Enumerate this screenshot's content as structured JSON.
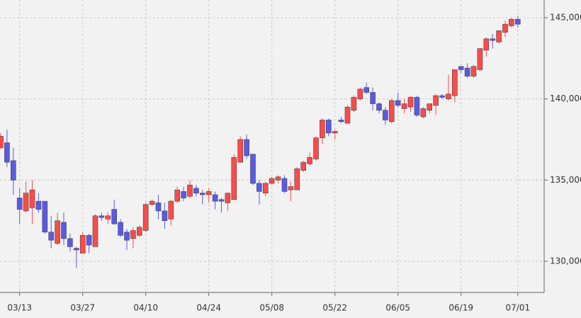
{
  "chart_data": {
    "type": "candlestick",
    "categories": [
      null,
      null,
      null,
      "03/13",
      null,
      null,
      null,
      null,
      null,
      null,
      null,
      null,
      null,
      "03/27",
      null,
      null,
      null,
      null,
      null,
      null,
      null,
      null,
      null,
      "04/10",
      null,
      null,
      null,
      null,
      null,
      null,
      null,
      null,
      null,
      "04/24",
      null,
      null,
      null,
      null,
      null,
      null,
      null,
      null,
      null,
      "05/08",
      null,
      null,
      null,
      null,
      null,
      null,
      null,
      null,
      null,
      "05/22",
      null,
      null,
      null,
      null,
      null,
      null,
      null,
      null,
      null,
      "06/05",
      null,
      null,
      null,
      null,
      null,
      null,
      null,
      null,
      null,
      "06/19",
      null,
      null,
      null,
      null,
      null,
      null,
      null,
      null,
      "07/01"
    ],
    "open": [
      137000,
      137300,
      136200,
      133900,
      133100,
      133300,
      133700,
      133700,
      131800,
      131100,
      132400,
      131400,
      130800,
      130500,
      131600,
      130900,
      132800,
      132600,
      133200,
      132400,
      131800,
      131400,
      131600,
      131900,
      133500,
      133600,
      133100,
      132600,
      133700,
      134300,
      134000,
      134500,
      134200,
      134100,
      134100,
      133800,
      133600,
      133800,
      136100,
      137500,
      136600,
      134800,
      134200,
      134800,
      135000,
      135100,
      134400,
      134400,
      135600,
      136000,
      136300,
      137600,
      138700,
      137900,
      138700,
      138500,
      139300,
      140000,
      140700,
      140400,
      139700,
      139300,
      138600,
      139900,
      139400,
      139500,
      140100,
      138900,
      139300,
      139600,
      140200,
      140000,
      140200,
      142000,
      141900,
      141400,
      141800,
      143000,
      143700,
      143500,
      144100,
      144500,
      144900
    ],
    "high": [
      137900,
      138100,
      137000,
      134500,
      134900,
      135000,
      134200,
      133700,
      132800,
      133000,
      133000,
      131700,
      130900,
      131800,
      131700,
      132900,
      133000,
      133000,
      133800,
      132600,
      132000,
      132100,
      132200,
      133600,
      133800,
      134100,
      133600,
      133800,
      134600,
      134600,
      135000,
      134700,
      134400,
      134500,
      134300,
      133900,
      134200,
      136600,
      137700,
      137800,
      136600,
      135000,
      134900,
      135200,
      135300,
      135300,
      134900,
      135800,
      136200,
      136700,
      137700,
      138800,
      138800,
      138100,
      138900,
      139600,
      140200,
      140700,
      141000,
      140700,
      139800,
      139500,
      140000,
      140400,
      140000,
      140200,
      140200,
      139500,
      139700,
      140300,
      140300,
      141500,
      141800,
      142000,
      142200,
      142100,
      143100,
      143800,
      144000,
      144200,
      144800,
      145000,
      145100
    ],
    "low": [
      136900,
      135800,
      134100,
      132300,
      133000,
      132300,
      133000,
      131700,
      130800,
      131000,
      131000,
      130600,
      129600,
      130500,
      130500,
      130900,
      132500,
      132300,
      132300,
      131500,
      130700,
      130800,
      131500,
      131800,
      133400,
      132600,
      132000,
      132200,
      133600,
      133700,
      133900,
      134000,
      133500,
      133600,
      133200,
      133000,
      133100,
      133800,
      136100,
      136300,
      134700,
      133500,
      134000,
      134700,
      134800,
      134200,
      133700,
      134400,
      135500,
      135900,
      136200,
      137200,
      137700,
      137500,
      138500,
      138500,
      139200,
      139900,
      140300,
      139300,
      139100,
      138400,
      138500,
      139500,
      139100,
      139200,
      138900,
      138800,
      139100,
      139000,
      140000,
      139900,
      139800,
      141600,
      141300,
      141300,
      141700,
      142600,
      143100,
      143400,
      143800,
      144400,
      144400
    ],
    "close": [
      137700,
      136100,
      135000,
      133200,
      134200,
      134400,
      133200,
      131800,
      131300,
      132500,
      131400,
      130900,
      130700,
      131600,
      131000,
      132800,
      132700,
      132800,
      132300,
      131600,
      131300,
      131900,
      132100,
      133500,
      133700,
      133100,
      132500,
      133700,
      134400,
      133900,
      134700,
      134200,
      134100,
      134300,
      133700,
      133700,
      134200,
      136400,
      137500,
      136500,
      134800,
      134300,
      134800,
      135100,
      135200,
      134300,
      134600,
      135700,
      136100,
      136400,
      137600,
      138700,
      137900,
      138000,
      138600,
      139500,
      140100,
      140600,
      140400,
      139700,
      139300,
      138700,
      139900,
      139600,
      139700,
      140100,
      139000,
      139400,
      139700,
      140200,
      140100,
      140300,
      141800,
      141800,
      141400,
      142000,
      143100,
      143700,
      143600,
      144200,
      144600,
      144900,
      144600
    ],
    "up_color": "#ff4a4a",
    "down_color": "#5a5ae6",
    "ylim": [
      128080,
      146090
    ],
    "yticks": [
      {
        "value": 130000,
        "label": "130,000"
      },
      {
        "value": 135000,
        "label": "135,000"
      },
      {
        "value": 140000,
        "label": "140,000"
      },
      {
        "value": 145000,
        "label": "145,000"
      }
    ],
    "grid": true
  }
}
